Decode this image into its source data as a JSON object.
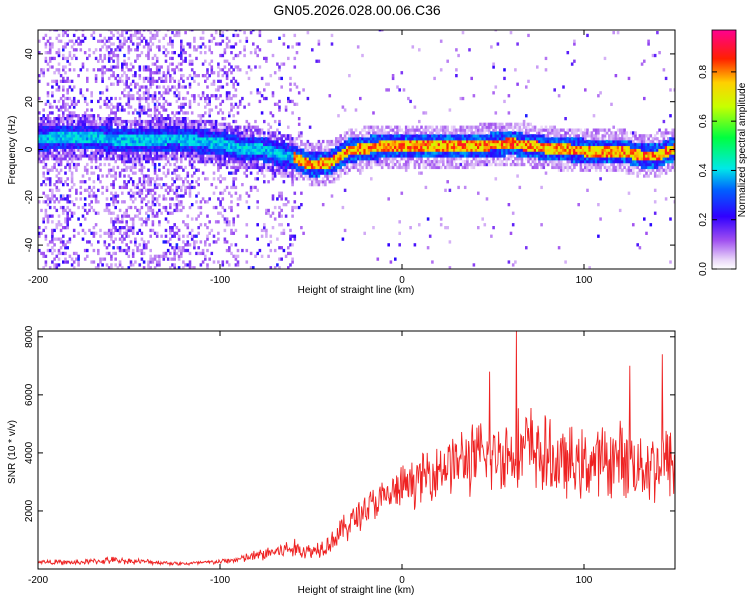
{
  "title": "GN05.2026.028.00.06.C36",
  "chart_data": [
    {
      "type": "heatmap",
      "xlabel": "Height of straight line (km)",
      "ylabel": "Frequency (Hz)",
      "xlim": [
        -200,
        150
      ],
      "ylim": [
        -50,
        50
      ],
      "xticks": [
        -200,
        -100,
        0,
        100
      ],
      "yticks": [
        -40,
        -20,
        0,
        20,
        40
      ],
      "colorbar": {
        "label": "Normalized spectral amplitude",
        "range": [
          0,
          0.97
        ],
        "ticks": [
          0,
          0.2,
          0.4,
          0.6,
          0.8
        ],
        "tick_labels": [
          "0.0",
          "0.2",
          "0.4",
          "0.6",
          "0.8"
        ]
      },
      "ridge": {
        "x": [
          -200,
          -175,
          -150,
          -125,
          -100,
          -90,
          -80,
          -70,
          -60,
          -50,
          -40,
          -30,
          -20,
          -10,
          0,
          20,
          40,
          60,
          80,
          100,
          120,
          130,
          140,
          150
        ],
        "frequency": [
          4,
          5,
          3,
          4,
          2,
          0,
          0,
          -2,
          -4,
          -7,
          -6,
          -1,
          0,
          1,
          1,
          1,
          1,
          2,
          0,
          -1,
          -1,
          -3,
          -3,
          0
        ]
      },
      "grid": false
    },
    {
      "type": "line",
      "xlabel": "Height of straight line (km)",
      "ylabel": "SNR (10 * v/v)",
      "xlim": [
        -200,
        150
      ],
      "ylim": [
        0,
        8200
      ],
      "xticks": [
        -200,
        -100,
        0,
        100
      ],
      "yticks": [
        2000,
        4000,
        6000,
        8000
      ],
      "series": [
        {
          "color": "#ee2222",
          "envelope": {
            "x": [
              -200,
              -180,
              -160,
              -140,
              -120,
              -100,
              -90,
              -80,
              -70,
              -60,
              -50,
              -40,
              -30,
              -20,
              -10,
              0,
              10,
              20,
              30,
              40,
              50,
              60,
              70,
              80,
              90,
              100,
              110,
              120,
              130,
              140,
              150
            ],
            "mean": [
              250,
              220,
              300,
              250,
              180,
              250,
              330,
              450,
              600,
              700,
              600,
              900,
              1500,
              2100,
              2400,
              2800,
              3100,
              3500,
              3700,
              3800,
              3900,
              4000,
              4200,
              3800,
              3600,
              3600,
              3700,
              3800,
              3600,
              3600,
              3700
            ],
            "spread": [
              100,
              100,
              150,
              100,
              80,
              100,
              150,
              250,
              350,
              400,
              350,
              450,
              650,
              750,
              800,
              900,
              1000,
              1200,
              1300,
              1500,
              1500,
              1600,
              1800,
              1600,
              1500,
              1400,
              1500,
              1500,
              1500,
              1600,
              1600
            ]
          },
          "peaks": [
            {
              "x": 63,
              "y": 8200
            },
            {
              "x": 48,
              "y": 6800
            },
            {
              "x": 143,
              "y": 7400
            },
            {
              "x": 125,
              "y": 7000
            }
          ]
        }
      ],
      "grid": false
    }
  ]
}
